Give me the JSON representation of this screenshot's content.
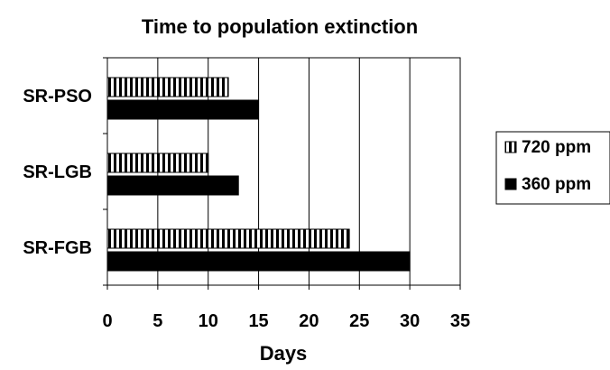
{
  "chart_data": {
    "type": "bar",
    "orientation": "horizontal",
    "title": "Time to population extinction",
    "xlabel": "Days",
    "ylabel": "",
    "xlim": [
      0,
      35
    ],
    "xticks": [
      0,
      5,
      10,
      15,
      20,
      25,
      30,
      35
    ],
    "grid": "vertical",
    "legend_position": "right",
    "categories": [
      "SR-PSO",
      "SR-LGB",
      "SR-FGB"
    ],
    "series": [
      {
        "name": "720 ppm",
        "values": [
          12,
          10,
          24
        ],
        "pattern": "vertical-stripes",
        "color": "#000000"
      },
      {
        "name": "360 ppm",
        "values": [
          15,
          13,
          30
        ],
        "pattern": "solid",
        "color": "#000000"
      }
    ]
  }
}
